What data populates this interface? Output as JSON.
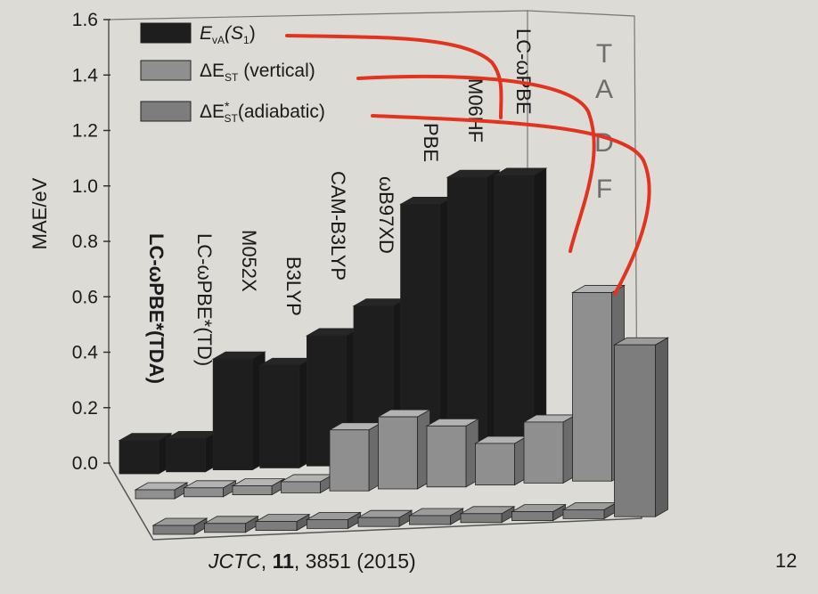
{
  "chart_data": {
    "type": "bar",
    "style": "3d-grouped",
    "ylabel": "MAE/eV",
    "ylim": [
      0,
      1.6
    ],
    "yticks": [
      "0.0",
      "0.2",
      "0.4",
      "0.6",
      "0.8",
      "1.0",
      "1.2",
      "1.4",
      "1.6"
    ],
    "grid": false,
    "categories": [
      "LC-ωPBE*(TDA)",
      "LC-ωPBE*(TD)",
      "M052X",
      "B3LYP",
      "CAM-B3LYP",
      "ωB97XD",
      "PBE",
      "M06HF",
      "LC-ωPBE",
      "TADF"
    ],
    "series": [
      {
        "name": "E_vA(S_1)",
        "label_main": "E",
        "label_sub": "vA",
        "label_paren": "(S",
        "label_paren_sub": "1",
        "label_close": ")",
        "color": "#1e1e1e",
        "values": [
          0.12,
          0.12,
          0.4,
          0.37,
          0.47,
          0.57,
          0.93,
          1.02,
          1.02,
          null
        ]
      },
      {
        "name": "ΔE_ST (vertical)",
        "label_main": "ΔE",
        "label_sub": "ST",
        "label_rest": " (vertical)",
        "color": "#8f8f8f",
        "values": [
          0.0,
          0.0,
          0.03,
          0.04,
          0.22,
          0.26,
          0.22,
          0.15,
          0.22,
          0.68
        ]
      },
      {
        "name": "ΔE*_ST (adiabatic)",
        "label_main": "ΔE",
        "label_sub": "ST",
        "label_sup": "*",
        "label_rest": "(adiabatic)",
        "color": "#7d7d7d",
        "values": [
          0.0,
          0.0,
          0.0,
          0.0,
          0.0,
          0.0,
          0.0,
          0.0,
          0.0,
          0.62
        ]
      }
    ],
    "legend_position": "top-left",
    "panel_text": [
      "T",
      "A",
      "D",
      "F"
    ]
  },
  "caption": {
    "journal": "JCTC",
    "volume": "11",
    "rest": ", 3851 (2015)"
  },
  "page_number": "12",
  "colors": {
    "annotation_arrows": "#e0341f",
    "background": "#dcdbd6"
  }
}
